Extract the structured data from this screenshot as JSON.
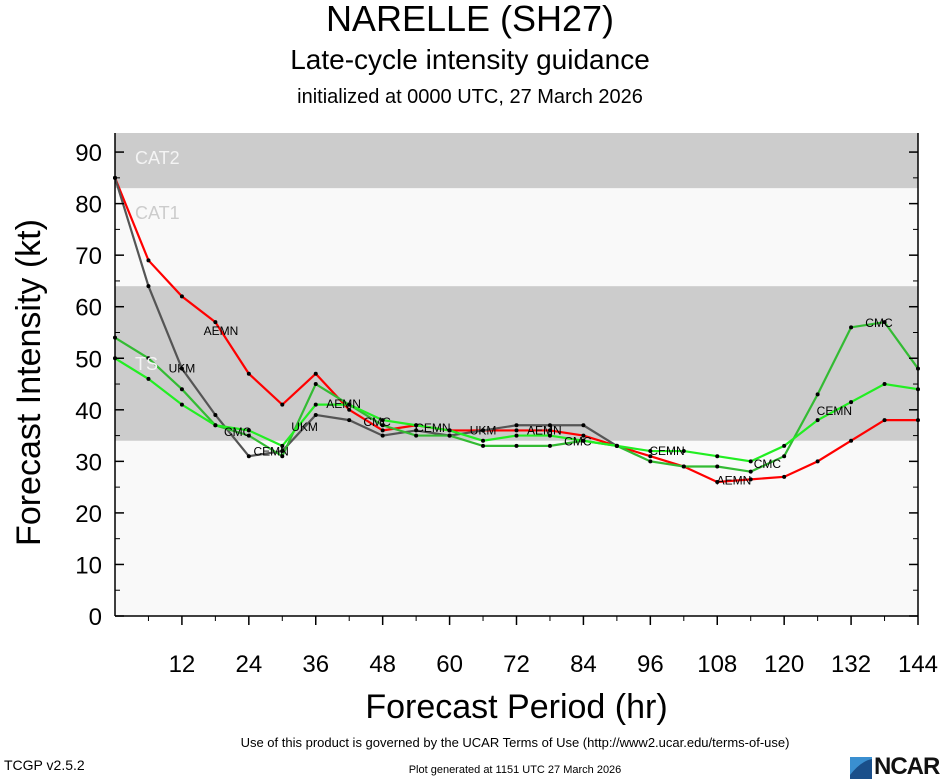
{
  "header": {
    "title": "NARELLE (SH27)",
    "subtitle": "Late-cycle intensity guidance",
    "initialized": "initialized at 0000 UTC, 27 March 2026"
  },
  "footer": {
    "terms": "Use of this product is governed by the UCAR Terms of Use (http://www2.ucar.edu/terms-of-use)",
    "version": "TCGP v2.5.2",
    "generated": "Plot generated at 1151 UTC   27 March 2026",
    "logo": "NCAR"
  },
  "chart_data": {
    "type": "line",
    "xlabel": "Forecast Period (hr)",
    "ylabel": "Forecast Intensity (kt)",
    "xlim": [
      0,
      144
    ],
    "ylim": [
      0,
      93.7
    ],
    "xticks": [
      12,
      24,
      36,
      48,
      60,
      72,
      84,
      96,
      108,
      120,
      132,
      144
    ],
    "yticks": [
      0,
      10,
      20,
      30,
      40,
      50,
      60,
      70,
      80,
      90
    ],
    "bands": [
      {
        "label": "TS",
        "from": 34,
        "to": 64,
        "color": "#cccccc"
      },
      {
        "label": "CAT1",
        "from": 64,
        "to": 83,
        "color": "#f9f9f9"
      },
      {
        "label": "CAT2",
        "from": 83,
        "to": 93.7,
        "color": "#cccccc"
      }
    ],
    "series": [
      {
        "name": "AEMN",
        "color": "#ff0000",
        "x": [
          0,
          6,
          12,
          18,
          24,
          30,
          36,
          42,
          48,
          54,
          60,
          66,
          72,
          78,
          84,
          90,
          96,
          102,
          108,
          114,
          120,
          126,
          132,
          138,
          144
        ],
        "values": [
          85,
          69,
          62,
          57,
          47,
          41,
          47,
          40,
          36,
          37,
          36,
          36,
          36,
          36,
          35,
          33,
          31,
          29,
          26,
          26.5,
          27,
          30,
          34,
          38,
          38
        ]
      },
      {
        "name": "UKM",
        "color": "#555555",
        "x": [
          0,
          6,
          12,
          18,
          24,
          30,
          36,
          42,
          48,
          54,
          60,
          66,
          72,
          78,
          84,
          90
        ],
        "values": [
          85,
          64,
          48,
          39,
          31,
          32,
          39,
          38,
          35,
          36,
          35,
          36,
          37,
          37,
          37,
          33
        ]
      },
      {
        "name": "CMC",
        "color": "#33bb33",
        "x": [
          0,
          6,
          12,
          18,
          24,
          30,
          36,
          42,
          48,
          54,
          60,
          66,
          72,
          78,
          84,
          90,
          96,
          102,
          108,
          114,
          120,
          126,
          132,
          138,
          144
        ],
        "values": [
          54,
          50,
          44,
          37,
          35,
          31,
          45,
          41,
          37,
          35,
          35,
          33,
          33,
          33,
          34,
          33,
          30,
          29,
          29,
          28,
          31,
          43,
          56,
          57,
          48
        ]
      },
      {
        "name": "CEMN",
        "color": "#22ee22",
        "x": [
          0,
          6,
          12,
          18,
          24,
          30,
          36,
          42,
          48,
          54,
          60,
          66,
          72,
          78,
          84,
          90,
          96,
          102,
          108,
          114,
          120,
          126,
          132,
          138,
          144
        ],
        "values": [
          50,
          46,
          41,
          37,
          36,
          33,
          41,
          41,
          38,
          37,
          36,
          34,
          35,
          35,
          34,
          33,
          32,
          32,
          31,
          30,
          33,
          38,
          41.5,
          45,
          44
        ]
      }
    ]
  }
}
